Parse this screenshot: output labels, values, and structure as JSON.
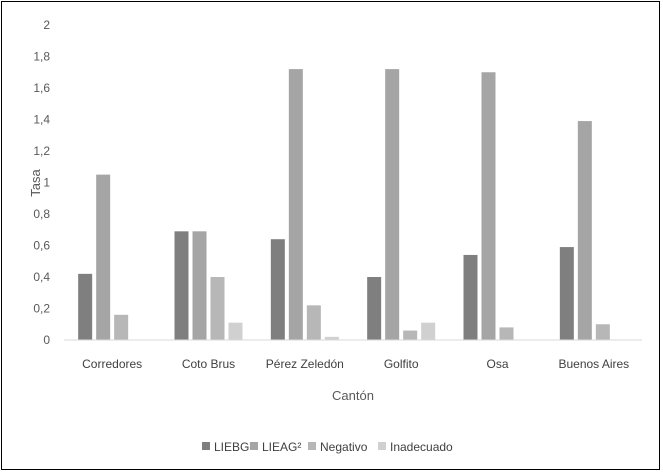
{
  "chart_data": {
    "type": "bar",
    "categories": [
      "Corredores",
      "Coto Brus",
      "Pérez Zeledón",
      "Golfito",
      "Osa",
      "Buenos Aires"
    ],
    "series": [
      {
        "name": "LIEBG¹",
        "values": [
          0.42,
          0.69,
          0.64,
          0.4,
          0.54,
          0.59
        ]
      },
      {
        "name": "LIEAG²",
        "values": [
          1.05,
          0.69,
          1.72,
          1.72,
          1.7,
          1.39
        ]
      },
      {
        "name": "Negativo",
        "values": [
          0.16,
          0.4,
          0.22,
          0.06,
          0.08,
          0.1
        ]
      },
      {
        "name": "Inadecuado",
        "values": [
          0.0,
          0.11,
          0.02,
          0.11,
          0.0,
          0.0
        ]
      }
    ],
    "title": "",
    "xlabel": "Cantón",
    "ylabel": "Tasa",
    "ylim": [
      0,
      2
    ],
    "yticks": [
      "0",
      "0,2",
      "0,4",
      "0,6",
      "0,8",
      "1",
      "1,2",
      "1,4",
      "1,6",
      "1,8",
      "2"
    ],
    "grid": false,
    "legend_position": "bottom",
    "colors": [
      "#7f7f7f",
      "#a5a5a5",
      "#b7b7b7",
      "#d0d0d0"
    ]
  }
}
